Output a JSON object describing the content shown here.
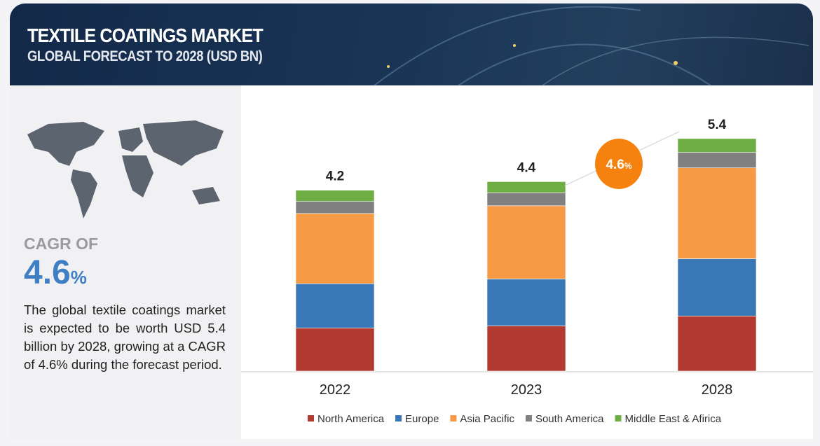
{
  "header": {
    "title": "TEXTILE COATINGS MARKET",
    "subtitle": "GLOBAL FORECAST TO 2028 (USD BN)"
  },
  "sidebar": {
    "cagr_label": "CAGR OF",
    "cagr_value": "4.6",
    "cagr_unit": "%",
    "description": "The global textile coatings market is expected to be worth USD 5.4 billion by 2028, growing at a CAGR of 4.6% during the forecast period."
  },
  "chart_data": {
    "type": "bar",
    "stacked": true,
    "categories": [
      "2022",
      "2023",
      "2028"
    ],
    "totals": [
      "4.2",
      "4.4",
      "5.4"
    ],
    "series": [
      {
        "name": "North America",
        "color": "#b33a30",
        "values": [
          1.0,
          1.05,
          1.28
        ]
      },
      {
        "name": "Europe",
        "color": "#3a77b6",
        "values": [
          1.03,
          1.09,
          1.33
        ]
      },
      {
        "name": "Asia Pacific",
        "color": "#f79a45",
        "values": [
          1.63,
          1.7,
          2.11
        ]
      },
      {
        "name": "South America",
        "color": "#808080",
        "values": [
          0.28,
          0.3,
          0.36
        ]
      },
      {
        "name": "Middle East & Afirica",
        "color": "#6fae44",
        "values": [
          0.26,
          0.26,
          0.32
        ]
      }
    ],
    "annotation": {
      "text": "4.6",
      "unit": "%",
      "color": "#f5820f"
    },
    "legend": "bottom",
    "grid": false
  }
}
